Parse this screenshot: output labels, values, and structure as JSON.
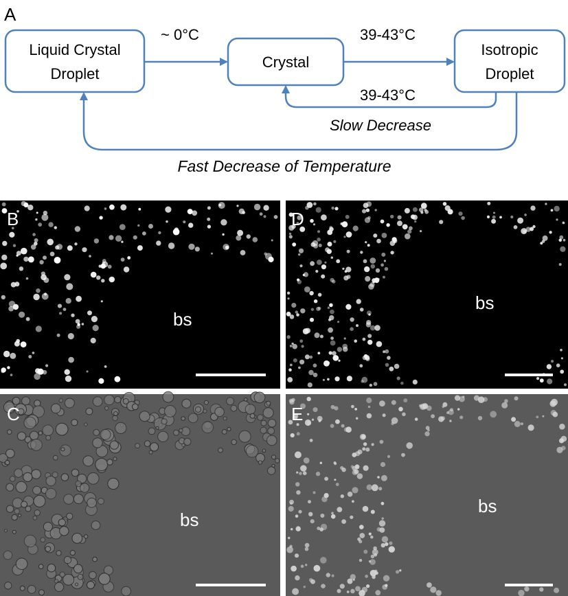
{
  "scheme": {
    "panel_letter": "A",
    "node_lc_line1": "Liquid Crystal",
    "node_lc_line2": "Droplet",
    "node_crystal": "Crystal",
    "node_iso_line1": "Isotropic",
    "node_iso_line2": "Droplet",
    "temp_cooling": "~ 0°C",
    "temp_heating": "39-43°C",
    "temp_return": "39-43°C",
    "slow_label": "Slow Decrease",
    "fast_label": "Fast Decrease of Temperature",
    "stroke_color": "#4f81bd"
  },
  "panels": [
    {
      "letter": "B",
      "region": "bs",
      "mode": "polarized"
    },
    {
      "letter": "D",
      "region": "bs",
      "mode": "polarized"
    },
    {
      "letter": "C",
      "region": "bs",
      "mode": "brightfield"
    },
    {
      "letter": "E",
      "region": "bs",
      "mode": "brightfield"
    }
  ]
}
